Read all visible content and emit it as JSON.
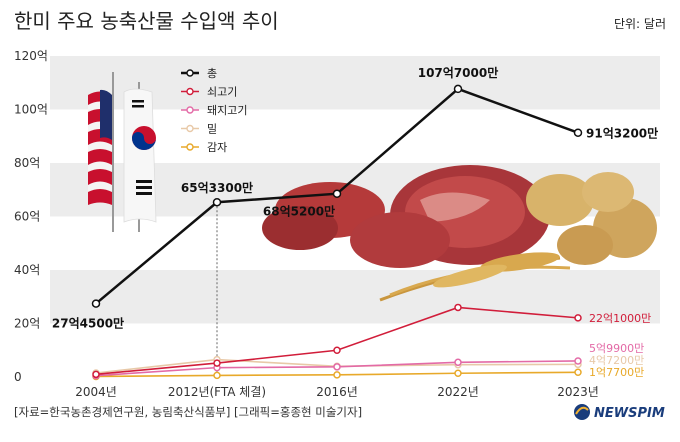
{
  "chart_data": {
    "type": "line",
    "title": "한미 주요 농축산물 수입액 추이",
    "unit": "단위: 달러",
    "categories": [
      "2004년",
      "2012년(FTA 체결)",
      "2016년",
      "2022년",
      "2023년"
    ],
    "y_ticks": [
      "0",
      "20억",
      "40억",
      "60억",
      "80억",
      "100억",
      "120억"
    ],
    "ylim": [
      0,
      120
    ],
    "grid": "horizontal bands",
    "legend_position": "top-left",
    "series": [
      {
        "name": "총",
        "color": "#111111",
        "values": [
          27.45,
          65.33,
          68.52,
          107.7,
          91.32
        ],
        "point_labels": [
          "27억4500만",
          "65억3300만",
          "68억5200만",
          "107억7000만",
          "91억3200만"
        ]
      },
      {
        "name": "쇠고기",
        "color": "#d11d3a",
        "values": [
          1.0,
          5.2,
          10.0,
          26.0,
          22.1
        ],
        "point_labels": [
          "",
          "",
          "",
          "",
          "22억1000만"
        ]
      },
      {
        "name": "돼지고기",
        "color": "#e36aa6",
        "values": [
          0.5,
          3.5,
          3.8,
          5.5,
          5.99
        ],
        "point_labels": [
          "",
          "",
          "",
          "",
          "5억9900만"
        ]
      },
      {
        "name": "밀",
        "color": "#e8c9a8",
        "values": [
          1.5,
          6.5,
          4.0,
          4.6,
          4.72
        ],
        "point_labels": [
          "",
          "",
          "",
          "",
          "4억7200만"
        ]
      },
      {
        "name": "감자",
        "color": "#e8a92a",
        "values": [
          0.2,
          0.6,
          0.8,
          1.4,
          1.77
        ],
        "point_labels": [
          "",
          "",
          "",
          "",
          "1억7700만"
        ]
      }
    ]
  },
  "source_text": "[자료=한국농촌경제연구원, 농림축산식품부] [그래픽=홍종현 미술기자]",
  "brand": "NEWSPIM"
}
